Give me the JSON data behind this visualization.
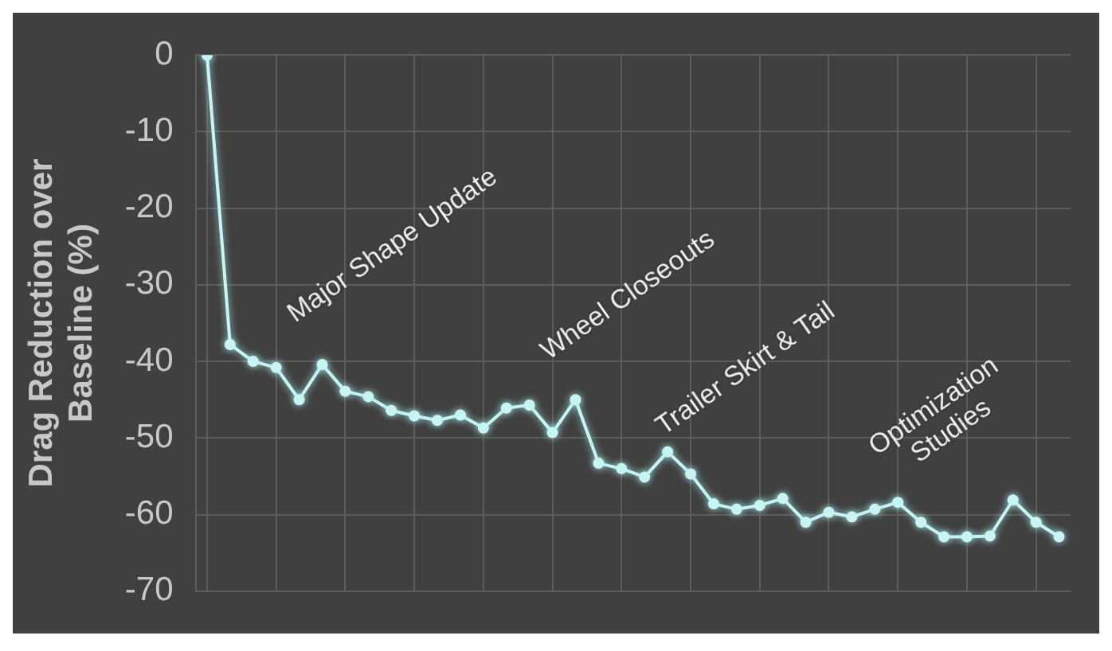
{
  "chart_data": {
    "type": "line",
    "ylabel": "Drag Reduction over Baseline (%)",
    "categories": [
      null,
      null,
      null,
      null,
      null,
      null,
      null,
      null,
      null,
      null,
      null,
      null,
      null,
      null,
      null,
      null,
      null,
      null,
      null,
      null,
      null,
      null,
      null,
      null,
      null,
      null,
      null,
      null,
      null,
      null,
      null,
      null,
      null,
      null,
      null,
      null,
      null,
      null
    ],
    "series": [
      {
        "color": "#c8f4f4",
        "values": [
          0,
          -37.8,
          -40,
          -40.8,
          -45,
          -40.4,
          -43.9,
          -44.6,
          -46.4,
          -47.1,
          -47.7,
          -47,
          -48.7,
          -46.1,
          -45.7,
          -49.3,
          -45,
          -53.3,
          -54,
          -55.1,
          -51.8,
          -54.7,
          -58.6,
          -59.3,
          -58.8,
          -57.9,
          -61,
          -59.7,
          -60.3,
          -59.3,
          -58.4,
          -61,
          -62.9,
          -62.9,
          -62.8,
          -58.1,
          -61,
          -62.9
        ]
      }
    ],
    "ylim": [
      -70,
      0
    ],
    "yticks": [
      -70,
      -60,
      -50,
      -40,
      -30,
      -20,
      -10,
      0
    ],
    "grid": true,
    "legend": false,
    "marker": "circle",
    "line_style": "solid",
    "tick_labels": "y",
    "annotations": [
      "Major Shape Update",
      "Wheel Closeouts",
      "Trailer Skirt & Tail",
      "Optimization Studies"
    ]
  }
}
